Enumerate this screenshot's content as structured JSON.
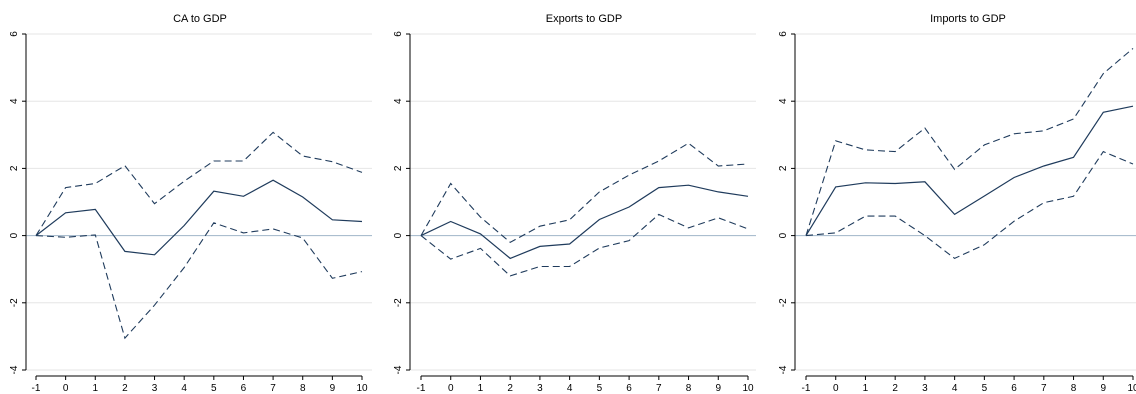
{
  "chart_data": [
    {
      "type": "line",
      "title": "CA to GDP",
      "xlabel": "",
      "ylabel": "",
      "x": [
        -1,
        0,
        1,
        2,
        3,
        4,
        5,
        6,
        7,
        8,
        9,
        10
      ],
      "xlim": [
        -1,
        10
      ],
      "ylim": [
        -4,
        6
      ],
      "yticks": [
        -4,
        -2,
        0,
        2,
        4,
        6
      ],
      "grid": true,
      "series": [
        {
          "style": "solid",
          "values": [
            0,
            0.68,
            0.78,
            -0.47,
            -0.57,
            0.3,
            1.32,
            1.17,
            1.65,
            1.15,
            0.47,
            0.42
          ]
        },
        {
          "style": "dashed",
          "values": [
            0,
            1.43,
            1.55,
            2.08,
            0.95,
            1.62,
            2.22,
            2.22,
            3.07,
            2.37,
            2.2,
            1.88
          ]
        },
        {
          "style": "dashed",
          "values": [
            0,
            -0.05,
            0.02,
            -3.05,
            -2.07,
            -0.95,
            0.38,
            0.08,
            0.2,
            -0.07,
            -1.27,
            -1.07
          ]
        }
      ]
    },
    {
      "type": "line",
      "title": "Exports to GDP",
      "xlabel": "",
      "ylabel": "",
      "x": [
        -1,
        0,
        1,
        2,
        3,
        4,
        5,
        6,
        7,
        8,
        9,
        10
      ],
      "xlim": [
        -1,
        10
      ],
      "ylim": [
        -4,
        6
      ],
      "yticks": [
        -4,
        -2,
        0,
        2,
        4,
        6
      ],
      "grid": true,
      "series": [
        {
          "style": "solid",
          "values": [
            0,
            0.42,
            0.05,
            -0.68,
            -0.32,
            -0.25,
            0.48,
            0.85,
            1.43,
            1.5,
            1.3,
            1.17
          ]
        },
        {
          "style": "dashed",
          "values": [
            0,
            1.55,
            0.55,
            -0.2,
            0.28,
            0.47,
            1.3,
            1.8,
            2.22,
            2.75,
            2.07,
            2.13
          ]
        },
        {
          "style": "dashed",
          "values": [
            0,
            -0.7,
            -0.38,
            -1.2,
            -0.92,
            -0.92,
            -0.37,
            -0.15,
            0.63,
            0.23,
            0.53,
            0.2
          ]
        }
      ]
    },
    {
      "type": "line",
      "title": "Imports to GDP",
      "xlabel": "",
      "ylabel": "",
      "x": [
        -1,
        0,
        1,
        2,
        3,
        4,
        5,
        6,
        7,
        8,
        9,
        10
      ],
      "xlim": [
        -1,
        10
      ],
      "ylim": [
        -4,
        6
      ],
      "yticks": [
        -4,
        -2,
        0,
        2,
        4,
        6
      ],
      "grid": true,
      "series": [
        {
          "style": "solid",
          "values": [
            0,
            1.45,
            1.57,
            1.55,
            1.6,
            0.63,
            1.18,
            1.73,
            2.07,
            2.33,
            3.67,
            3.85
          ]
        },
        {
          "style": "dashed",
          "values": [
            0,
            2.82,
            2.55,
            2.5,
            3.2,
            1.97,
            2.7,
            3.03,
            3.12,
            3.47,
            4.82,
            5.57
          ]
        },
        {
          "style": "dashed",
          "values": [
            0,
            0.08,
            0.58,
            0.58,
            0.0,
            -0.68,
            -0.27,
            0.43,
            0.98,
            1.17,
            2.5,
            2.13
          ]
        }
      ]
    }
  ]
}
